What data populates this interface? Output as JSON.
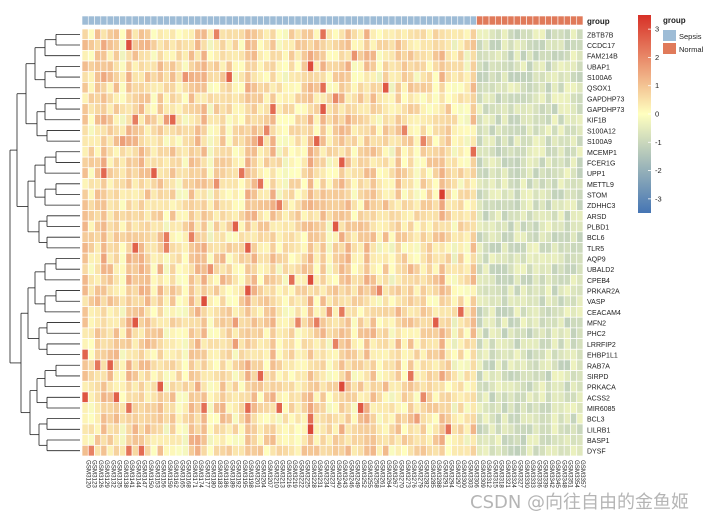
{
  "chart_data": {
    "type": "heatmap",
    "rows": [
      "ZBTB7B",
      "CCDC17",
      "FAM214B",
      "UBAP1",
      "S100A6",
      "QSOX1",
      "GAPDHP73",
      "GAPDHP73",
      "KIF1B",
      "S100A12",
      "S100A9",
      "MCEMP1",
      "FCER1G",
      "UPP1",
      "METTL9",
      "STOM",
      "ZDHHC3",
      "ARSD",
      "PLBD1",
      "BCL6",
      "TLR5",
      "AQP9",
      "UBALD2",
      "CPEB4",
      "PRKAR2A",
      "VASP",
      "CEACAM4",
      "MFN2",
      "PHC2",
      "LRRFIP2",
      "EHBP1L1",
      "RAB7A",
      "SIRPD",
      "PRKACA",
      "ACSS2",
      "MIR6085",
      "BCL3",
      "LILRB1",
      "BASP1",
      "DYSF"
    ],
    "n_columns": 80,
    "column_prefix": "GSM",
    "column_groups": {
      "Sepsis": 63,
      "Normal": 17
    },
    "annotation_title": "group",
    "groups": [
      {
        "name": "Sepsis",
        "color": "#9ebcd6"
      },
      {
        "name": "Normal",
        "color": "#e07a5a"
      }
    ],
    "colorbar": {
      "min": -3.5,
      "max": 3.5,
      "ticks": [
        3,
        2,
        1,
        0,
        -1,
        -2,
        -3
      ]
    },
    "color_scale": {
      "low": "#4575b4",
      "mid": "#ffffbf",
      "high": "#d73027"
    }
  },
  "watermark": "CSDN @向往自由的金鱼姬"
}
